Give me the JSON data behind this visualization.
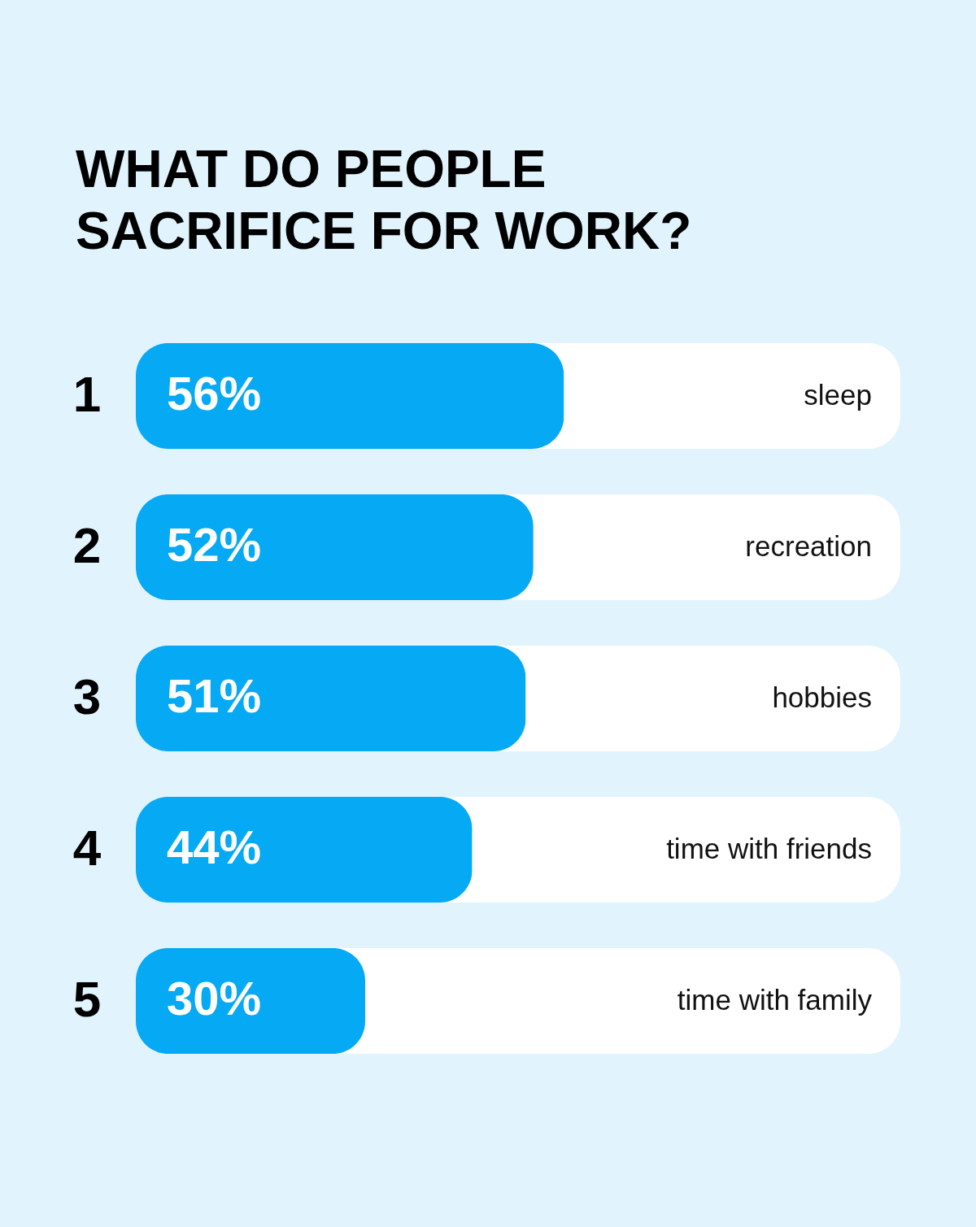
{
  "chart_data": {
    "type": "bar",
    "orientation": "horizontal",
    "title": [
      "WHAT DO PEOPLE",
      "SACRIFICE FOR WORK?"
    ],
    "categories": [
      "sleep",
      "recreation",
      "hobbies",
      "time with friends",
      "time with family"
    ],
    "values": [
      56,
      52,
      51,
      44,
      30
    ],
    "value_labels": [
      "56%",
      "52%",
      "51%",
      "44%",
      "30%"
    ],
    "color": "#05a9f4",
    "xlim": [
      0,
      100
    ],
    "tick_labels": false,
    "annotations": [
      "1",
      "2",
      "3",
      "4",
      "5"
    ]
  }
}
